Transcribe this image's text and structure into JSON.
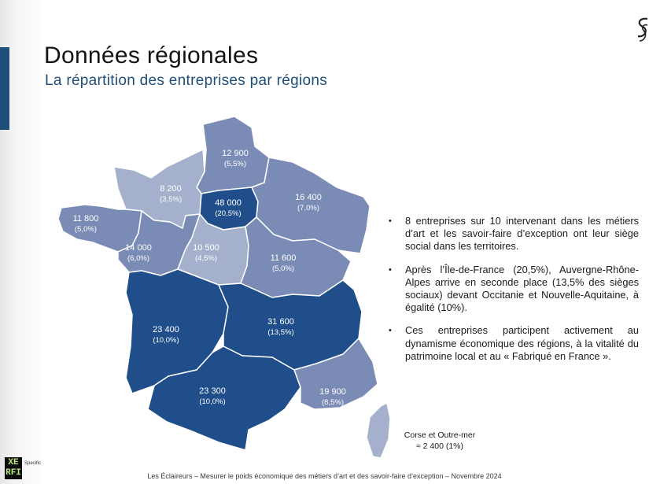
{
  "title": "Données régionales",
  "subtitle": "La répartition des entreprises par régions",
  "colors": {
    "dark": "#1f4e8a",
    "medium": "#7a8bb5",
    "light": "#a4b0cc",
    "accent": "#1f4e79"
  },
  "regions": [
    {
      "id": "hauts-de-france",
      "value": "12 900",
      "pct": "(5,5%)",
      "shade": "medium"
    },
    {
      "id": "normandie",
      "value": "8 200",
      "pct": "(3,5%)",
      "shade": "light"
    },
    {
      "id": "ile-de-france",
      "value": "48 000",
      "pct": "(20,5%)",
      "shade": "darkest"
    },
    {
      "id": "grand-est",
      "value": "16 400",
      "pct": "(7,0%)",
      "shade": "medium"
    },
    {
      "id": "bretagne",
      "value": "11 800",
      "pct": "(5,0%)",
      "shade": "medium"
    },
    {
      "id": "pays-de-la-loire",
      "value": "14 000",
      "pct": "(6,0%)",
      "shade": "medium"
    },
    {
      "id": "centre-val-de-loire",
      "value": "10 500",
      "pct": "(4,5%)",
      "shade": "light"
    },
    {
      "id": "bourgogne-franche-comte",
      "value": "11 600",
      "pct": "(5,0%)",
      "shade": "medium"
    },
    {
      "id": "nouvelle-aquitaine",
      "value": "23 400",
      "pct": "(10,0%)",
      "shade": "dark"
    },
    {
      "id": "auvergne-rhone-alpes",
      "value": "31 600",
      "pct": "(13,5%)",
      "shade": "dark"
    },
    {
      "id": "occitanie",
      "value": "23 300",
      "pct": "(10,0%)",
      "shade": "dark"
    },
    {
      "id": "paca",
      "value": "19 900",
      "pct": "(8,5%)",
      "shade": "medium"
    },
    {
      "id": "corse",
      "shade": "light"
    }
  ],
  "bullets": [
    "8 entreprises sur 10 intervenant dans les métiers d’art et les savoir-faire d’exception ont leur siège social dans les territoires.",
    "Après l’Île-de-France (20,5%), Auvergne-Rhône-Alpes arrive en seconde place (13,5% des sièges sociaux) devant Occitanie et Nouvelle-Aquitaine, à égalité (10%).",
    "Ces entreprises participent activement au dynamisme économique des régions, à la vitalité du patrimoine local et au « Fabriqué en France »."
  ],
  "corse_note": {
    "line1": "Corse et Outre-mer",
    "line2": "≈ 2 400 (1%)"
  },
  "logo": {
    "line1": "XE",
    "line2": "RFI",
    "tag": "Specific"
  },
  "footer": "Les Éclaireurs – Mesurer le poids économique des métiers d’art et des savoir-faire d’exception – Novembre 2024"
}
